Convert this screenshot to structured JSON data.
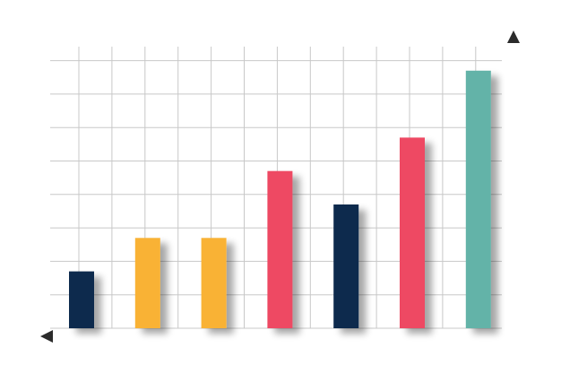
{
  "chart_data": {
    "type": "bar",
    "title": "",
    "xlabel": "",
    "ylabel": "",
    "grid": true,
    "ylim": [
      0,
      8
    ],
    "categories": [
      "",
      "",
      "",
      "",
      "",
      "",
      ""
    ],
    "values": [
      1.7,
      2.7,
      2.7,
      4.7,
      3.7,
      5.7,
      7.7
    ],
    "bar_colors": [
      "#0c2b4e",
      "#f9b236",
      "#f9b236",
      "#ee4a64",
      "#0c2b4e",
      "#ee4a64",
      "#63b3a8"
    ],
    "axis_color": "#2b2b2b",
    "grid_color": "#c8c8c8"
  }
}
